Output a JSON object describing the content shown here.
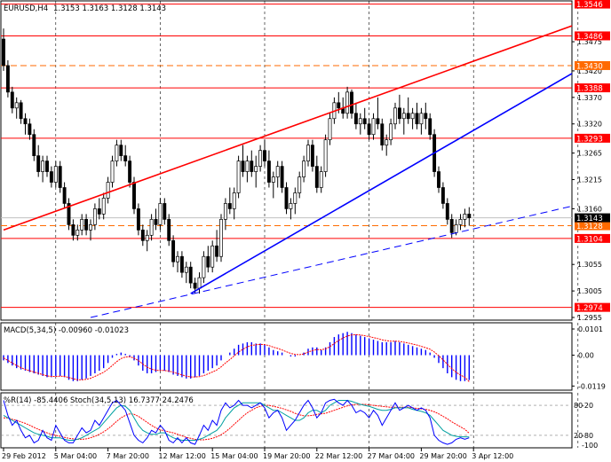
{
  "colors": {
    "background": "#ffffff",
    "frame": "#000000",
    "grid": "#000000",
    "candle": "#000000",
    "resistance": "#ff0000",
    "trend_red": "#ff0000",
    "trend_blue": "#0000ff",
    "dashed_orange": "#ff6a00",
    "current_price_line": "#c0c0c0",
    "macd_bars": "#0000ff",
    "macd_signal": "#ff0000",
    "wpr": "#0000ff",
    "stoch_main": "#00a0a0",
    "stoch_signal": "#ff0000",
    "label_red": "#ff0000",
    "label_orange": "#ff6a00",
    "label_current": "#000000"
  },
  "main": {
    "header": {
      "symbol": "EURUSD,H4",
      "ohlc": "1.3153 1.3163 1.3128 1.3143"
    },
    "price_range": [
      1.295,
      1.3552
    ],
    "price_ticks": [
      "1.3475",
      "1.3420",
      "1.3370",
      "1.3320",
      "1.3265",
      "1.3215",
      "1.3160",
      "1.3055",
      "1.3005",
      "1.2955"
    ],
    "levels": [
      {
        "price": 1.3546,
        "label": "1.3546",
        "style": "solid",
        "color": "#ff0000"
      },
      {
        "price": 1.3486,
        "label": "1.3486",
        "style": "solid",
        "color": "#ff0000"
      },
      {
        "price": 1.343,
        "label": "1.3430",
        "style": "dashed",
        "color": "#ff6a00"
      },
      {
        "price": 1.3388,
        "label": "1.3388",
        "style": "solid",
        "color": "#ff0000"
      },
      {
        "price": 1.3293,
        "label": "1.3293",
        "style": "solid",
        "color": "#ff0000"
      },
      {
        "price": 1.3128,
        "label": "1.3128",
        "style": "dashed",
        "color": "#ff6a00"
      },
      {
        "price": 1.3104,
        "label": "1.3104",
        "style": "solid",
        "color": "#ff0000"
      },
      {
        "price": 1.2974,
        "label": "1.2974",
        "style": "solid",
        "color": "#ff0000"
      }
    ],
    "current": {
      "price": 1.3143,
      "label": "1.3143"
    },
    "candles": [
      [
        1.348,
        1.35,
        1.342,
        1.343
      ],
      [
        1.343,
        1.344,
        1.337,
        1.338
      ],
      [
        1.338,
        1.339,
        1.334,
        1.335
      ],
      [
        1.335,
        1.337,
        1.333,
        1.336
      ],
      [
        1.336,
        1.3365,
        1.332,
        1.333
      ],
      [
        1.333,
        1.334,
        1.33,
        1.332
      ],
      [
        1.332,
        1.333,
        1.329,
        1.33
      ],
      [
        1.33,
        1.331,
        1.325,
        1.326
      ],
      [
        1.326,
        1.328,
        1.322,
        1.323
      ],
      [
        1.323,
        1.326,
        1.321,
        1.325
      ],
      [
        1.325,
        1.326,
        1.322,
        1.323
      ],
      [
        1.323,
        1.324,
        1.32,
        1.321
      ],
      [
        1.321,
        1.325,
        1.32,
        1.324
      ],
      [
        1.324,
        1.325,
        1.319,
        1.32
      ],
      [
        1.32,
        1.321,
        1.316,
        1.317
      ],
      [
        1.317,
        1.318,
        1.312,
        1.313
      ],
      [
        1.313,
        1.314,
        1.31,
        1.311
      ],
      [
        1.311,
        1.313,
        1.31,
        1.312
      ],
      [
        1.312,
        1.315,
        1.311,
        1.314
      ],
      [
        1.314,
        1.315,
        1.311,
        1.312
      ],
      [
        1.312,
        1.314,
        1.31,
        1.313
      ],
      [
        1.313,
        1.317,
        1.312,
        1.316
      ],
      [
        1.316,
        1.318,
        1.314,
        1.315
      ],
      [
        1.315,
        1.319,
        1.314,
        1.318
      ],
      [
        1.318,
        1.322,
        1.317,
        1.321
      ],
      [
        1.321,
        1.326,
        1.32,
        1.325
      ],
      [
        1.325,
        1.329,
        1.324,
        1.328
      ],
      [
        1.328,
        1.329,
        1.325,
        1.326
      ],
      [
        1.326,
        1.328,
        1.324,
        1.325
      ],
      [
        1.325,
        1.326,
        1.32,
        1.321
      ],
      [
        1.321,
        1.322,
        1.315,
        1.316
      ],
      [
        1.316,
        1.317,
        1.311,
        1.312
      ],
      [
        1.312,
        1.313,
        1.309,
        1.31
      ],
      [
        1.31,
        1.312,
        1.308,
        1.311
      ],
      [
        1.311,
        1.315,
        1.31,
        1.314
      ],
      [
        1.314,
        1.316,
        1.312,
        1.313
      ],
      [
        1.313,
        1.318,
        1.312,
        1.317
      ],
      [
        1.317,
        1.318,
        1.313,
        1.314
      ],
      [
        1.314,
        1.315,
        1.309,
        1.31
      ],
      [
        1.31,
        1.311,
        1.305,
        1.306
      ],
      [
        1.306,
        1.308,
        1.304,
        1.307
      ],
      [
        1.307,
        1.308,
        1.303,
        1.304
      ],
      [
        1.304,
        1.306,
        1.302,
        1.305
      ],
      [
        1.305,
        1.306,
        1.301,
        1.302
      ],
      [
        1.302,
        1.303,
        1.3,
        1.301
      ],
      [
        1.301,
        1.304,
        1.3,
        1.303
      ],
      [
        1.303,
        1.308,
        1.302,
        1.307
      ],
      [
        1.307,
        1.309,
        1.304,
        1.305
      ],
      [
        1.305,
        1.31,
        1.304,
        1.309
      ],
      [
        1.309,
        1.312,
        1.306,
        1.307
      ],
      [
        1.307,
        1.315,
        1.306,
        1.314
      ],
      [
        1.314,
        1.318,
        1.312,
        1.317
      ],
      [
        1.317,
        1.32,
        1.315,
        1.316
      ],
      [
        1.316,
        1.32,
        1.314,
        1.319
      ],
      [
        1.319,
        1.326,
        1.318,
        1.325
      ],
      [
        1.325,
        1.328,
        1.322,
        1.323
      ],
      [
        1.323,
        1.326,
        1.321,
        1.325
      ],
      [
        1.325,
        1.327,
        1.322,
        1.323
      ],
      [
        1.323,
        1.326,
        1.32,
        1.324
      ],
      [
        1.324,
        1.328,
        1.323,
        1.327
      ],
      [
        1.327,
        1.329,
        1.324,
        1.325
      ],
      [
        1.325,
        1.327,
        1.32,
        1.321
      ],
      [
        1.321,
        1.323,
        1.318,
        1.322
      ],
      [
        1.322,
        1.325,
        1.32,
        1.324
      ],
      [
        1.324,
        1.325,
        1.319,
        1.32
      ],
      [
        1.32,
        1.321,
        1.315,
        1.316
      ],
      [
        1.316,
        1.318,
        1.314,
        1.317
      ],
      [
        1.317,
        1.32,
        1.315,
        1.319
      ],
      [
        1.319,
        1.323,
        1.318,
        1.322
      ],
      [
        1.322,
        1.326,
        1.321,
        1.325
      ],
      [
        1.325,
        1.329,
        1.324,
        1.328
      ],
      [
        1.328,
        1.329,
        1.323,
        1.324
      ],
      [
        1.324,
        1.326,
        1.319,
        1.32
      ],
      [
        1.32,
        1.324,
        1.319,
        1.323
      ],
      [
        1.323,
        1.33,
        1.322,
        1.329
      ],
      [
        1.329,
        1.334,
        1.328,
        1.333
      ],
      [
        1.333,
        1.337,
        1.332,
        1.336
      ],
      [
        1.336,
        1.338,
        1.334,
        1.335
      ],
      [
        1.335,
        1.337,
        1.333,
        1.334
      ],
      [
        1.334,
        1.339,
        1.333,
        1.338
      ],
      [
        1.338,
        1.3385,
        1.333,
        1.334
      ],
      [
        1.334,
        1.336,
        1.331,
        1.332
      ],
      [
        1.332,
        1.334,
        1.33,
        1.333
      ],
      [
        1.333,
        1.335,
        1.331,
        1.332
      ],
      [
        1.332,
        1.333,
        1.329,
        1.33
      ],
      [
        1.33,
        1.334,
        1.329,
        1.333
      ],
      [
        1.333,
        1.337,
        1.331,
        1.332
      ],
      [
        1.332,
        1.333,
        1.327,
        1.328
      ],
      [
        1.328,
        1.33,
        1.326,
        1.329
      ],
      [
        1.329,
        1.333,
        1.328,
        1.332
      ],
      [
        1.332,
        1.336,
        1.331,
        1.335
      ],
      [
        1.335,
        1.3375,
        1.332,
        1.333
      ],
      [
        1.333,
        1.335,
        1.33,
        1.334
      ],
      [
        1.334,
        1.337,
        1.332,
        1.333
      ],
      [
        1.333,
        1.335,
        1.331,
        1.334
      ],
      [
        1.334,
        1.336,
        1.331,
        1.332
      ],
      [
        1.332,
        1.335,
        1.33,
        1.334
      ],
      [
        1.334,
        1.336,
        1.331,
        1.333
      ],
      [
        1.333,
        1.334,
        1.329,
        1.33
      ],
      [
        1.33,
        1.331,
        1.322,
        1.323
      ],
      [
        1.323,
        1.324,
        1.319,
        1.32
      ],
      [
        1.32,
        1.321,
        1.316,
        1.317
      ],
      [
        1.317,
        1.318,
        1.313,
        1.314
      ],
      [
        1.314,
        1.315,
        1.3105,
        1.3115
      ],
      [
        1.3115,
        1.314,
        1.311,
        1.313
      ],
      [
        1.313,
        1.315,
        1.312,
        1.314
      ],
      [
        1.314,
        1.316,
        1.3125,
        1.315
      ],
      [
        1.315,
        1.3163,
        1.3128,
        1.3143
      ]
    ],
    "trendlines": [
      {
        "name": "red-channel-top",
        "color": "#ff0000",
        "dash": false,
        "from": {
          "bar": 0,
          "price": 1.312
        },
        "to": {
          "bar": 155,
          "price": 1.3505
        }
      },
      {
        "name": "blue-support",
        "color": "#0000ff",
        "dash": false,
        "from": {
          "bar": 43,
          "price": 1.3
        },
        "to": {
          "bar": 155,
          "price": 1.3415
        }
      },
      {
        "name": "blue-dashed-support",
        "color": "#0000ff",
        "dash": true,
        "from": {
          "bar": 20,
          "price": 1.2955
        },
        "to": {
          "bar": 155,
          "price": 1.3165
        }
      }
    ]
  },
  "x_axis": {
    "labels": [
      {
        "bar": 0,
        "text": "29 Feb 2012"
      },
      {
        "bar": 12,
        "text": "5 Mar 04:00"
      },
      {
        "bar": 24,
        "text": "7 Mar 20:00"
      },
      {
        "bar": 36,
        "text": "12 Mar 12:00"
      },
      {
        "bar": 48,
        "text": "15 Mar 04:00"
      },
      {
        "bar": 60,
        "text": "19 Mar 20:00"
      },
      {
        "bar": 72,
        "text": "22 Mar 12:00"
      },
      {
        "bar": 84,
        "text": "27 Mar 04:00"
      },
      {
        "bar": 96,
        "text": "29 Mar 20:00"
      },
      {
        "bar": 108,
        "text": "3 Apr 12:00"
      }
    ],
    "vgrid_bars": [
      12,
      36,
      60,
      84,
      108,
      132
    ]
  },
  "macd": {
    "header": "MACD(5,34,5) -0.00960 -0.01023",
    "ticks": [
      "0.0101",
      "0.00",
      "-0.0119"
    ],
    "range": [
      -0.0135,
      0.0125
    ],
    "values": [
      -0.002,
      -0.003,
      -0.004,
      -0.005,
      -0.0055,
      -0.006,
      -0.0065,
      -0.007,
      -0.0075,
      -0.008,
      -0.0085,
      -0.0085,
      -0.008,
      -0.008,
      -0.0085,
      -0.0095,
      -0.01,
      -0.01,
      -0.0095,
      -0.009,
      -0.008,
      -0.007,
      -0.006,
      -0.005,
      -0.003,
      -0.001,
      0.0005,
      0.001,
      0.0005,
      -0.0005,
      -0.002,
      -0.004,
      -0.006,
      -0.007,
      -0.007,
      -0.0065,
      -0.006,
      -0.006,
      -0.0065,
      -0.0075,
      -0.008,
      -0.0085,
      -0.009,
      -0.009,
      -0.0085,
      -0.008,
      -0.007,
      -0.006,
      -0.005,
      -0.004,
      -0.002,
      0.0,
      0.001,
      0.0025,
      0.004,
      0.0045,
      0.005,
      0.005,
      0.0045,
      0.0045,
      0.004,
      0.003,
      0.002,
      0.0015,
      0.001,
      0.0,
      -0.0005,
      -0.0005,
      0.0,
      0.001,
      0.0025,
      0.003,
      0.003,
      0.002,
      0.003,
      0.005,
      0.007,
      0.008,
      0.0085,
      0.009,
      0.0085,
      0.008,
      0.0075,
      0.007,
      0.0065,
      0.006,
      0.0055,
      0.005,
      0.005,
      0.005,
      0.0055,
      0.005,
      0.0045,
      0.004,
      0.0035,
      0.003,
      0.0025,
      0.002,
      0.001,
      -0.001,
      -0.003,
      -0.005,
      -0.007,
      -0.0085,
      -0.0095,
      -0.01,
      -0.01,
      -0.0096
    ],
    "signal": [
      -0.001,
      -0.002,
      -0.003,
      -0.004,
      -0.0048,
      -0.0055,
      -0.006,
      -0.0065,
      -0.007,
      -0.0075,
      -0.008,
      -0.0082,
      -0.0082,
      -0.0081,
      -0.0082,
      -0.0086,
      -0.0091,
      -0.0095,
      -0.0095,
      -0.0093,
      -0.0089,
      -0.0082,
      -0.0074,
      -0.0066,
      -0.0054,
      -0.004,
      -0.0025,
      -0.0013,
      -0.0007,
      -0.0006,
      -0.0011,
      -0.0021,
      -0.0034,
      -0.0046,
      -0.0054,
      -0.0058,
      -0.0059,
      -0.0059,
      -0.0061,
      -0.0066,
      -0.0071,
      -0.0076,
      -0.0081,
      -0.0084,
      -0.0084,
      -0.0083,
      -0.0079,
      -0.0072,
      -0.0065,
      -0.0057,
      -0.0045,
      -0.003,
      -0.0017,
      -0.0003,
      0.0012,
      0.0023,
      0.0032,
      0.0038,
      0.004,
      0.0042,
      0.0041,
      0.0037,
      0.0031,
      0.0026,
      0.002,
      0.0013,
      0.0007,
      0.0003,
      0.0002,
      0.0005,
      0.0012,
      0.0018,
      0.0022,
      0.0021,
      0.0024,
      0.0033,
      0.0045,
      0.0057,
      0.0066,
      0.0074,
      0.0078,
      0.0079,
      0.0078,
      0.0075,
      0.0072,
      0.0068,
      0.0064,
      0.0059,
      0.0056,
      0.0054,
      0.0054,
      0.0053,
      0.005,
      0.0047,
      0.0043,
      0.0039,
      0.0034,
      0.0029,
      0.0023,
      0.0012,
      -0.0002,
      -0.0018,
      -0.0035,
      -0.0052,
      -0.0066,
      -0.0077,
      -0.0085,
      -0.0102
    ]
  },
  "osc": {
    "header": "%R(14) -85.4406  Stoch(34,5,13) 16.7377 24.2476",
    "ticks": [
      "-20",
      "-80",
      "-100"
    ],
    "ticks_left": [
      "80",
      "20"
    ],
    "range": [
      -105,
      5
    ],
    "wpr": [
      -10,
      -40,
      -60,
      -50,
      -70,
      -85,
      -80,
      -95,
      -90,
      -70,
      -85,
      -90,
      -60,
      -75,
      -90,
      -95,
      -95,
      -80,
      -65,
      -75,
      -70,
      -50,
      -60,
      -45,
      -30,
      -15,
      -10,
      -20,
      -30,
      -55,
      -80,
      -90,
      -95,
      -85,
      -70,
      -75,
      -60,
      -70,
      -90,
      -95,
      -85,
      -95,
      -85,
      -95,
      -98,
      -80,
      -60,
      -70,
      -50,
      -60,
      -30,
      -15,
      -25,
      -20,
      -10,
      -20,
      -20,
      -25,
      -20,
      -15,
      -25,
      -45,
      -35,
      -30,
      -45,
      -70,
      -60,
      -50,
      -35,
      -20,
      -10,
      -25,
      -45,
      -35,
      -15,
      -10,
      -8,
      -15,
      -20,
      -10,
      -20,
      -35,
      -30,
      -35,
      -45,
      -30,
      -40,
      -60,
      -45,
      -30,
      -15,
      -30,
      -25,
      -20,
      -25,
      -30,
      -25,
      -30,
      -45,
      -80,
      -90,
      -95,
      -98,
      -95,
      -88,
      -85,
      -88,
      -85
    ],
    "stoch_main": [
      60,
      55,
      50,
      45,
      40,
      35,
      30,
      25,
      22,
      20,
      18,
      15,
      15,
      15,
      12,
      10,
      10,
      12,
      15,
      20,
      25,
      30,
      35,
      45,
      55,
      65,
      75,
      80,
      78,
      70,
      55,
      40,
      30,
      25,
      22,
      22,
      25,
      25,
      20,
      15,
      12,
      10,
      10,
      10,
      10,
      12,
      15,
      20,
      25,
      30,
      40,
      55,
      65,
      75,
      80,
      85,
      85,
      85,
      85,
      85,
      80,
      75,
      70,
      70,
      65,
      60,
      55,
      50,
      50,
      55,
      65,
      70,
      70,
      65,
      70,
      80,
      85,
      90,
      90,
      90,
      88,
      85,
      82,
      80,
      78,
      75,
      72,
      70,
      70,
      72,
      75,
      75,
      75,
      75,
      72,
      70,
      68,
      65,
      60,
      50,
      40,
      30,
      25,
      20,
      18,
      17,
      17,
      16.7
    ],
    "stoch_signal": [
      55,
      55,
      52,
      50,
      47,
      44,
      40,
      36,
      32,
      28,
      25,
      22,
      20,
      18,
      16,
      14,
      13,
      12,
      12,
      13,
      15,
      18,
      22,
      27,
      33,
      40,
      48,
      55,
      60,
      63,
      62,
      58,
      52,
      46,
      40,
      35,
      31,
      29,
      27,
      25,
      22,
      19,
      16,
      14,
      12,
      11,
      11,
      12,
      14,
      17,
      21,
      27,
      34,
      42,
      50,
      58,
      65,
      70,
      75,
      78,
      80,
      80,
      78,
      76,
      74,
      71,
      68,
      64,
      61,
      59,
      59,
      60,
      62,
      63,
      64,
      67,
      70,
      73,
      76,
      79,
      81,
      82,
      82,
      82,
      81,
      80,
      79,
      78,
      77,
      76,
      76,
      76,
      76,
      76,
      75,
      74,
      73,
      72,
      70,
      67,
      63,
      58,
      53,
      47,
      42,
      37,
      32,
      24.2
    ]
  }
}
